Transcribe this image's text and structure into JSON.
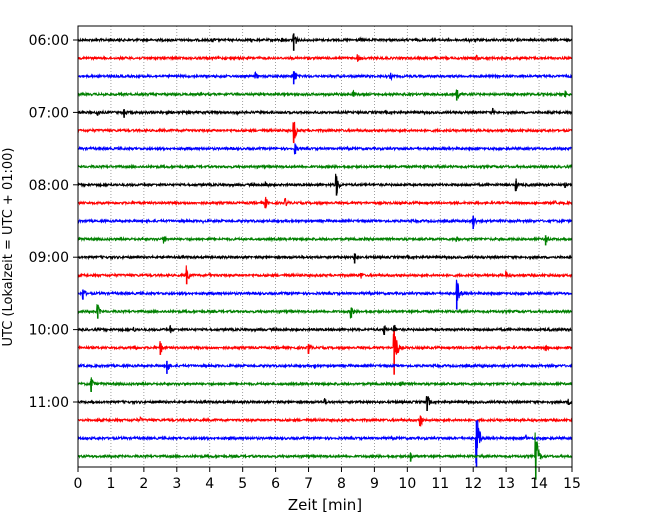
{
  "chart_data": {
    "type": "line",
    "title": "",
    "xlabel": "Zeit  [min]",
    "ylabel": "UTC (Lokalzeit = UTC + 01:00)",
    "xlim": [
      0,
      15
    ],
    "x_ticks": [
      "0",
      "1",
      "2",
      "3",
      "4",
      "5",
      "6",
      "7",
      "8",
      "9",
      "10",
      "11",
      "12",
      "13",
      "14",
      "15"
    ],
    "y_tick_labels": [
      "06:00",
      "07:00",
      "08:00",
      "09:00",
      "10:00",
      "11:00"
    ],
    "grid": "vertical dotted",
    "rows_per_hour": 4,
    "row_minutes": 15,
    "start_time": "06:00",
    "colors": [
      "#000000",
      "#ff0000",
      "#0000ff",
      "#008000"
    ],
    "series": [
      {
        "start": "06:00",
        "events": [
          [
            6.55,
            12
          ],
          [
            1.0,
            2
          ],
          [
            2.7,
            2
          ],
          [
            4.1,
            3
          ],
          [
            6.2,
            3
          ],
          [
            8.6,
            2
          ],
          [
            11.9,
            2
          ]
        ]
      },
      {
        "start": "06:15",
        "events": [
          [
            8.5,
            5
          ],
          [
            12.1,
            4
          ],
          [
            7.0,
            2
          ]
        ]
      },
      {
        "start": "06:30",
        "events": [
          [
            5.4,
            4
          ],
          [
            6.55,
            9
          ],
          [
            9.5,
            4
          ],
          [
            14.0,
            2
          ]
        ]
      },
      {
        "start": "06:45",
        "events": [
          [
            8.35,
            5
          ],
          [
            11.5,
            7
          ],
          [
            14.8,
            4
          ],
          [
            0.8,
            2
          ]
        ]
      },
      {
        "start": "07:00",
        "events": [
          [
            0.6,
            5
          ],
          [
            1.4,
            6
          ],
          [
            4.8,
            5
          ],
          [
            12.6,
            4
          ]
        ]
      },
      {
        "start": "07:15",
        "events": [
          [
            6.55,
            14
          ],
          [
            3.3,
            2
          ]
        ]
      },
      {
        "start": "07:30",
        "events": [
          [
            6.6,
            6
          ],
          [
            14.7,
            2
          ]
        ]
      },
      {
        "start": "07:45",
        "events": [
          [
            10.5,
            2
          ]
        ]
      },
      {
        "start": "08:00",
        "events": [
          [
            5.7,
            5
          ],
          [
            7.85,
            12
          ],
          [
            13.3,
            7
          ],
          [
            14.8,
            3
          ]
        ]
      },
      {
        "start": "08:15",
        "events": [
          [
            5.7,
            6
          ],
          [
            6.3,
            5
          ],
          [
            14.5,
            2
          ]
        ]
      },
      {
        "start": "08:30",
        "events": [
          [
            3.8,
            2
          ],
          [
            12.0,
            9
          ],
          [
            14.7,
            2
          ]
        ]
      },
      {
        "start": "08:45",
        "events": [
          [
            2.6,
            5
          ],
          [
            11.5,
            4
          ],
          [
            14.2,
            7
          ]
        ]
      },
      {
        "start": "09:00",
        "events": [
          [
            8.4,
            7
          ],
          [
            10.6,
            2
          ]
        ]
      },
      {
        "start": "09:15",
        "events": [
          [
            3.3,
            10
          ],
          [
            4.0,
            3
          ],
          [
            8.6,
            4
          ],
          [
            13.0,
            5
          ]
        ]
      },
      {
        "start": "09:30",
        "events": [
          [
            0.15,
            7
          ],
          [
            11.5,
            18
          ],
          [
            6.4,
            2
          ]
        ]
      },
      {
        "start": "09:45",
        "events": [
          [
            0.6,
            8
          ],
          [
            8.3,
            7
          ]
        ]
      },
      {
        "start": "10:00",
        "events": [
          [
            1.7,
            3
          ],
          [
            2.8,
            5
          ],
          [
            9.3,
            6
          ],
          [
            9.6,
            7
          ],
          [
            14.3,
            2
          ]
        ]
      },
      {
        "start": "10:15",
        "events": [
          [
            1.7,
            5
          ],
          [
            2.5,
            8
          ],
          [
            7.0,
            7
          ],
          [
            9.6,
            30
          ],
          [
            14.2,
            5
          ]
        ]
      },
      {
        "start": "10:30",
        "events": [
          [
            2.7,
            9
          ],
          [
            7.2,
            3
          ],
          [
            12.3,
            2
          ]
        ]
      },
      {
        "start": "10:45",
        "events": [
          [
            0.4,
            9
          ],
          [
            9.8,
            5
          ]
        ]
      },
      {
        "start": "11:00",
        "events": [
          [
            7.5,
            4
          ],
          [
            10.6,
            10
          ],
          [
            14.9,
            4
          ]
        ]
      },
      {
        "start": "11:15",
        "events": [
          [
            1.9,
            3
          ],
          [
            10.4,
            7
          ]
        ]
      },
      {
        "start": "11:30",
        "events": [
          [
            12.1,
            32
          ],
          [
            13.6,
            4
          ],
          [
            4.6,
            2
          ]
        ]
      },
      {
        "start": "11:45",
        "events": [
          [
            10.1,
            6
          ],
          [
            13.9,
            26
          ]
        ]
      }
    ]
  }
}
